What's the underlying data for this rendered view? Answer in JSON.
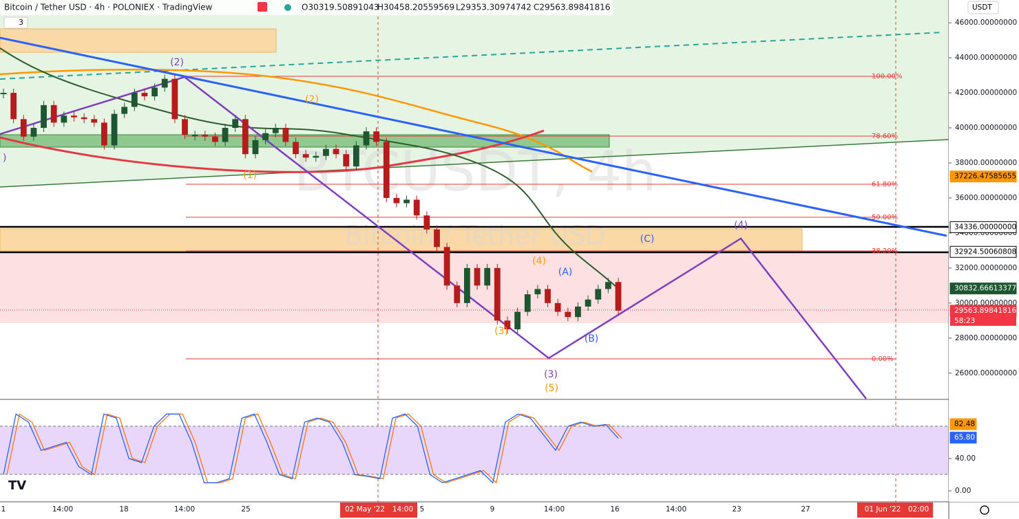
{
  "header": {
    "symbol": "Bitcoin / Tether USD · 4h · POLONIEX · TradingView",
    "open": "O30319.50891043",
    "high": "H30458.20559569",
    "low": "L29353.30974742",
    "close": "C29563.89841816",
    "indicator_count": "3",
    "currency": "USDT"
  },
  "watermark": {
    "ticker": "BTCUSDT, 4h",
    "name": "Bitcoin / Tether USD"
  },
  "chart_data": [
    {
      "type": "candlestick",
      "ylim": [
        24500,
        47300
      ],
      "yticks": [
        {
          "value": 46000,
          "label": "46000.00000000"
        },
        {
          "value": 44000,
          "label": "44000.00000000"
        },
        {
          "value": 42000,
          "label": "42000.00000000"
        },
        {
          "value": 40000,
          "label": "40000.00000000"
        },
        {
          "value": 38000,
          "label": "38000.00000000"
        },
        {
          "value": 36000,
          "label": "36000.00000000"
        },
        {
          "value": 34000,
          "label": "34000.00000000"
        },
        {
          "value": 32000,
          "label": "32000.00000000"
        },
        {
          "value": 30000,
          "label": "30000.00000000"
        },
        {
          "value": 28000,
          "label": "28000.00000000"
        },
        {
          "value": 26000,
          "label": "26000.00000000"
        }
      ],
      "series": [
        {
          "name": "Bitcoin / Tether USD",
          "up_color": "#1e5631",
          "down_color": "#b71c1c",
          "values": [
            42000,
            40500,
            39500,
            40000,
            41300,
            40300,
            40700,
            40600,
            40500,
            40300,
            39000,
            40800,
            41200,
            42000,
            41800,
            42300,
            42800,
            40500,
            39600,
            39600,
            39500,
            39200,
            40000,
            40500,
            38500,
            39300,
            39700,
            40000,
            39200,
            38500,
            38300,
            38400,
            38800,
            38500,
            37800,
            39000,
            39800,
            39200,
            36000,
            35700,
            35900,
            35000,
            34200,
            33200,
            31000,
            30000,
            32000,
            31000,
            32000,
            29000,
            28500,
            29500,
            30500,
            30800,
            30000,
            29500,
            29200,
            29800,
            30200,
            30800,
            31200,
            29564
          ]
        }
      ],
      "price_tags": [
        {
          "value": 37226.47585655,
          "label": "37226.47585655",
          "color": "#ff9800",
          "text_color": "#000000"
        },
        {
          "value": 34336,
          "label": "34336.00000000",
          "color": "#ffffff",
          "text_color": "#000000"
        },
        {
          "value": 32924.50060808,
          "label": "32924.50060808",
          "color": "#ffffff",
          "text_color": "#000000"
        },
        {
          "value": 30832.66613377,
          "label": "30832.66613377",
          "color": "#1e5631",
          "text_color": "#ffffff"
        },
        {
          "value": 29563.89841816,
          "label": "29563.89841816",
          "color": "#f23645",
          "text_color": "#ffffff"
        }
      ],
      "countdown": "58:23",
      "fib_levels": [
        "100.00%",
        "78.60%",
        "61.80%",
        "50.00%",
        "38.20%",
        "0.00%"
      ],
      "wave_labels": [
        "(2)",
        "(2)",
        "(1)",
        "(4)",
        "(3)",
        "(A)",
        "(B)",
        "(C)",
        "(4)",
        "(3)",
        "(5)",
        ")"
      ]
    },
    {
      "type": "line",
      "ylim": [
        -13.6,
        112.3
      ],
      "yticks": [
        {
          "value": 40,
          "label": "40.00"
        },
        {
          "value": 0,
          "label": "0.00"
        }
      ],
      "series": [
        {
          "color": "#2962ff",
          "values": [
            20,
            95,
            85,
            50,
            55,
            60,
            30,
            20,
            95,
            90,
            40,
            35,
            80,
            95,
            95,
            60,
            10,
            10,
            15,
            90,
            95,
            60,
            20,
            15,
            85,
            90,
            85,
            60,
            20,
            18,
            15,
            90,
            95,
            80,
            20,
            10,
            15,
            20,
            25,
            10,
            85,
            95,
            90,
            70,
            50,
            80,
            85,
            80,
            82,
            65
          ]
        }
      ],
      "price_tags": [
        {
          "value": 82.48,
          "label": "82.48",
          "color": "#ff9800",
          "text_color": "#000000"
        },
        {
          "value": 65.8,
          "label": "65.80",
          "color": "#2962ff",
          "text_color": "#ffffff"
        }
      ]
    }
  ],
  "time_axis": [
    "1",
    "14:00",
    "18",
    "14:00",
    "25",
    "02 May '22",
    "14:00",
    "5",
    "9",
    "14:00",
    "16",
    "14:00",
    "23",
    "27",
    "01 Jun '22",
    "02:00"
  ]
}
